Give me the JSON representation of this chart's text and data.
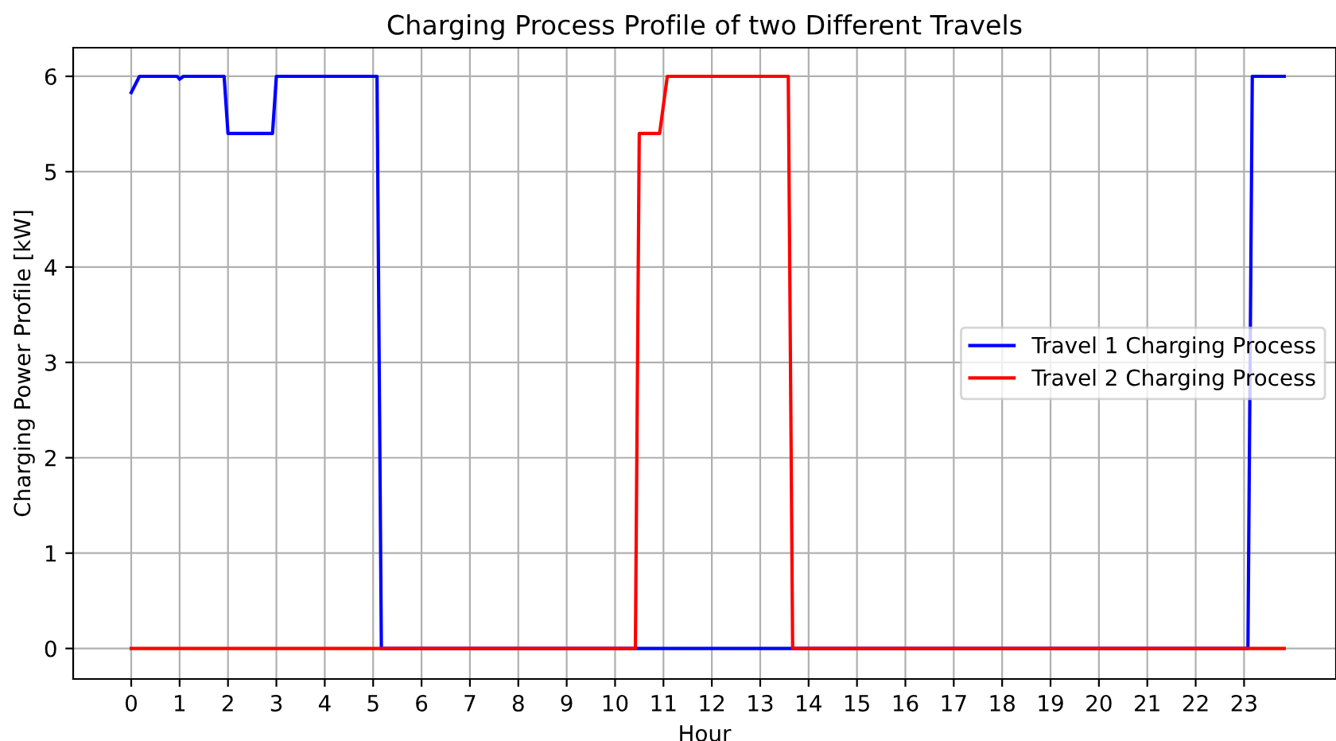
{
  "chart_data": {
    "type": "line",
    "title": "Charging Process Profile of two Different Travels",
    "xlabel": "Hour",
    "ylabel": "Charging Power Profile [kW]",
    "series": [
      {
        "name": "Travel 1 Charging Process",
        "color": "#0000ff",
        "x": [
          0,
          0.17,
          0.95,
          1.0,
          1.08,
          1.92,
          2.0,
          2.92,
          3.0,
          5.08,
          5.17,
          13.67,
          23.08,
          23.17,
          23.83
        ],
        "values": [
          5.83,
          6,
          6,
          5.97,
          6,
          6,
          5.4,
          5.4,
          6,
          6,
          0,
          0,
          0,
          6,
          6
        ]
      },
      {
        "name": "Travel 2 Charging Process",
        "color": "#ff0000",
        "x": [
          0,
          10.42,
          10.5,
          10.92,
          11.08,
          13.58,
          13.67,
          23.83
        ],
        "values": [
          0,
          0,
          5.4,
          5.4,
          6,
          6,
          0,
          0
        ]
      }
    ],
    "xlim": [
      -1.2,
      24.9
    ],
    "ylim": [
      -0.32,
      6.3
    ],
    "xticks": [
      0,
      1,
      2,
      3,
      4,
      5,
      6,
      7,
      8,
      9,
      10,
      11,
      12,
      13,
      14,
      15,
      16,
      17,
      18,
      19,
      20,
      21,
      22,
      23
    ],
    "yticks": [
      0,
      1,
      2,
      3,
      4,
      5,
      6
    ],
    "grid": true,
    "legend": "right",
    "marker": "none",
    "line_style": "solid"
  }
}
